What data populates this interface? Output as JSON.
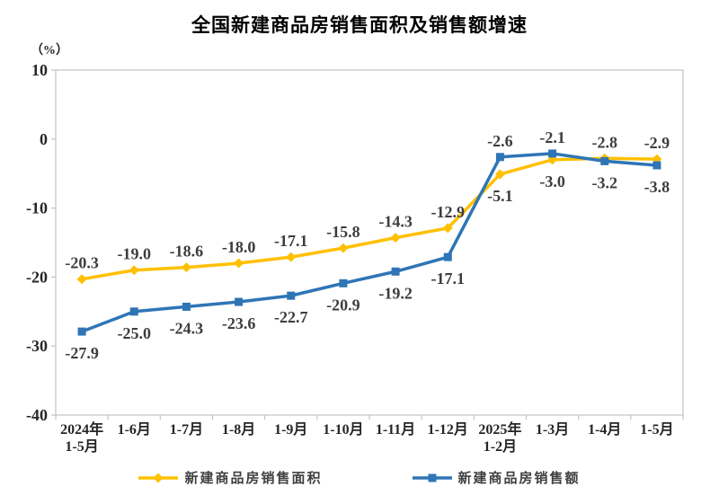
{
  "colors": {
    "axis": "#c3c3c3",
    "tick_text": "#262626",
    "data_label_text": "#3d3d3d",
    "title_text": "#000000",
    "sales_area_yellow": "#FFC000",
    "sales_amount_blue": "#2E75B6"
  },
  "chart_data": {
    "type": "line",
    "title": "全国新建商品房销售面积及销售额增速",
    "ylabel": "（%）",
    "xlabel": "",
    "categories": [
      "2024年\n1-5月",
      "1-6月",
      "1-7月",
      "1-8月",
      "1-9月",
      "1-10月",
      "1-11月",
      "1-12月",
      "2025年\n1-2月",
      "1-3月",
      "1-4月",
      "1-5月"
    ],
    "series": [
      {
        "id": "sales-area",
        "name": "新建商品房销售面积",
        "color": "#FFC000",
        "marker": "diamond",
        "values": [
          -20.3,
          -19.0,
          -18.6,
          -18.0,
          -17.1,
          -15.8,
          -14.3,
          -12.9,
          -5.1,
          -3.0,
          -2.8,
          -2.9
        ]
      },
      {
        "id": "sales-amount",
        "name": "新建商品房销售额",
        "color": "#2E75B6",
        "marker": "square",
        "values": [
          -27.9,
          -25.0,
          -24.3,
          -23.6,
          -22.7,
          -20.9,
          -19.2,
          -17.1,
          -2.6,
          -2.1,
          -3.2,
          -3.8
        ]
      }
    ],
    "ylim": [
      -40,
      10
    ],
    "yticks": [
      10,
      0,
      -10,
      -20,
      -30,
      -40
    ],
    "grid": false,
    "data_labels": true,
    "legend_position": "bottom"
  }
}
